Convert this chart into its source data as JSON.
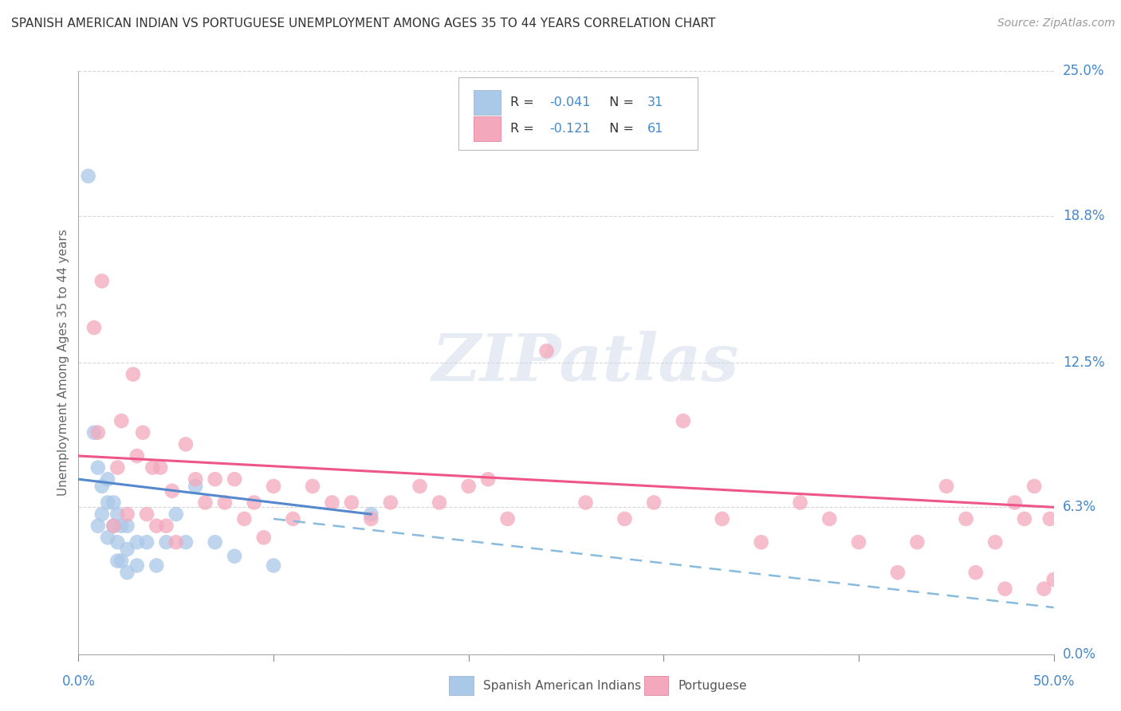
{
  "title": "SPANISH AMERICAN INDIAN VS PORTUGUESE UNEMPLOYMENT AMONG AGES 35 TO 44 YEARS CORRELATION CHART",
  "source": "Source: ZipAtlas.com",
  "ylabel": "Unemployment Among Ages 35 to 44 years",
  "xlim": [
    0.0,
    0.5
  ],
  "ylim": [
    0.0,
    0.25
  ],
  "ytick_labels": [
    "0.0%",
    "6.3%",
    "12.5%",
    "18.8%",
    "25.0%"
  ],
  "ytick_values": [
    0.0,
    0.063,
    0.125,
    0.188,
    0.25
  ],
  "background_color": "#ffffff",
  "grid_color": "#cccccc",
  "series1_color": "#aac8e8",
  "series2_color": "#f4a8bc",
  "series1_label": "Spanish American Indians",
  "series2_label": "Portuguese",
  "trend1_solid_color": "#5588cc",
  "trend1_dash_color": "#88bbdd",
  "trend2_color": "#ee5588",
  "watermark_text": "ZIPatlas",
  "blue_label_color": "#4488cc",
  "legend_r1": "-0.041",
  "legend_n1": "31",
  "legend_r2": "-0.121",
  "legend_n2": "61",
  "series1_x": [
    0.005,
    0.008,
    0.01,
    0.01,
    0.012,
    0.012,
    0.015,
    0.015,
    0.015,
    0.018,
    0.018,
    0.02,
    0.02,
    0.02,
    0.022,
    0.022,
    0.025,
    0.025,
    0.025,
    0.03,
    0.03,
    0.035,
    0.04,
    0.045,
    0.05,
    0.055,
    0.06,
    0.07,
    0.08,
    0.1,
    0.15
  ],
  "series1_y": [
    0.205,
    0.095,
    0.08,
    0.055,
    0.072,
    0.06,
    0.075,
    0.065,
    0.05,
    0.065,
    0.055,
    0.06,
    0.048,
    0.04,
    0.055,
    0.04,
    0.055,
    0.045,
    0.035,
    0.048,
    0.038,
    0.048,
    0.038,
    0.048,
    0.06,
    0.048,
    0.072,
    0.048,
    0.042,
    0.038,
    0.06
  ],
  "series2_x": [
    0.008,
    0.01,
    0.012,
    0.018,
    0.02,
    0.022,
    0.025,
    0.028,
    0.03,
    0.033,
    0.035,
    0.038,
    0.04,
    0.042,
    0.045,
    0.048,
    0.05,
    0.055,
    0.06,
    0.065,
    0.07,
    0.075,
    0.08,
    0.085,
    0.09,
    0.095,
    0.1,
    0.11,
    0.12,
    0.13,
    0.14,
    0.15,
    0.16,
    0.175,
    0.185,
    0.2,
    0.21,
    0.22,
    0.24,
    0.26,
    0.28,
    0.295,
    0.31,
    0.33,
    0.35,
    0.37,
    0.385,
    0.4,
    0.42,
    0.43,
    0.445,
    0.455,
    0.46,
    0.47,
    0.475,
    0.48,
    0.485,
    0.49,
    0.495,
    0.498,
    0.5
  ],
  "series2_y": [
    0.14,
    0.095,
    0.16,
    0.055,
    0.08,
    0.1,
    0.06,
    0.12,
    0.085,
    0.095,
    0.06,
    0.08,
    0.055,
    0.08,
    0.055,
    0.07,
    0.048,
    0.09,
    0.075,
    0.065,
    0.075,
    0.065,
    0.075,
    0.058,
    0.065,
    0.05,
    0.072,
    0.058,
    0.072,
    0.065,
    0.065,
    0.058,
    0.065,
    0.072,
    0.065,
    0.072,
    0.075,
    0.058,
    0.13,
    0.065,
    0.058,
    0.065,
    0.1,
    0.058,
    0.048,
    0.065,
    0.058,
    0.048,
    0.035,
    0.048,
    0.072,
    0.058,
    0.035,
    0.048,
    0.028,
    0.065,
    0.058,
    0.072,
    0.028,
    0.058,
    0.032
  ]
}
